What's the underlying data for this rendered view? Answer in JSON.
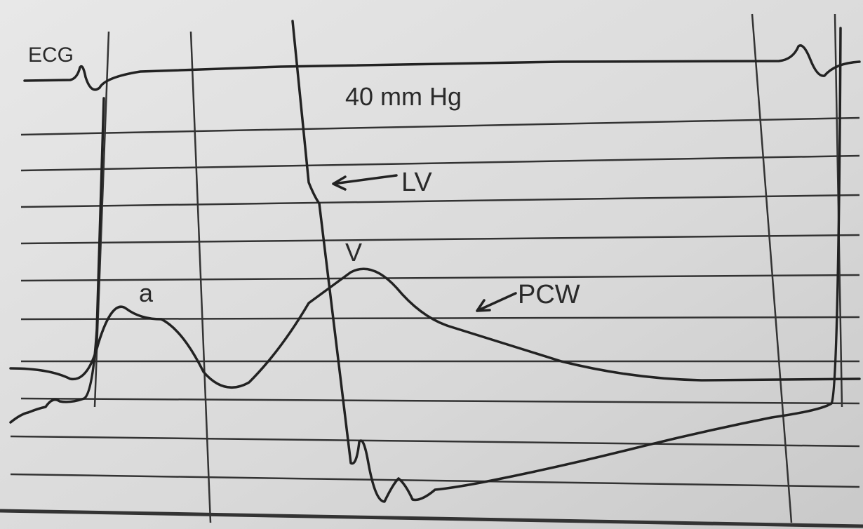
{
  "labels": {
    "ecg": "ECG",
    "scale": "40 mm Hg",
    "lv": "LV",
    "v_wave": "V",
    "a_wave": "a",
    "pcw": "PCW"
  }
}
